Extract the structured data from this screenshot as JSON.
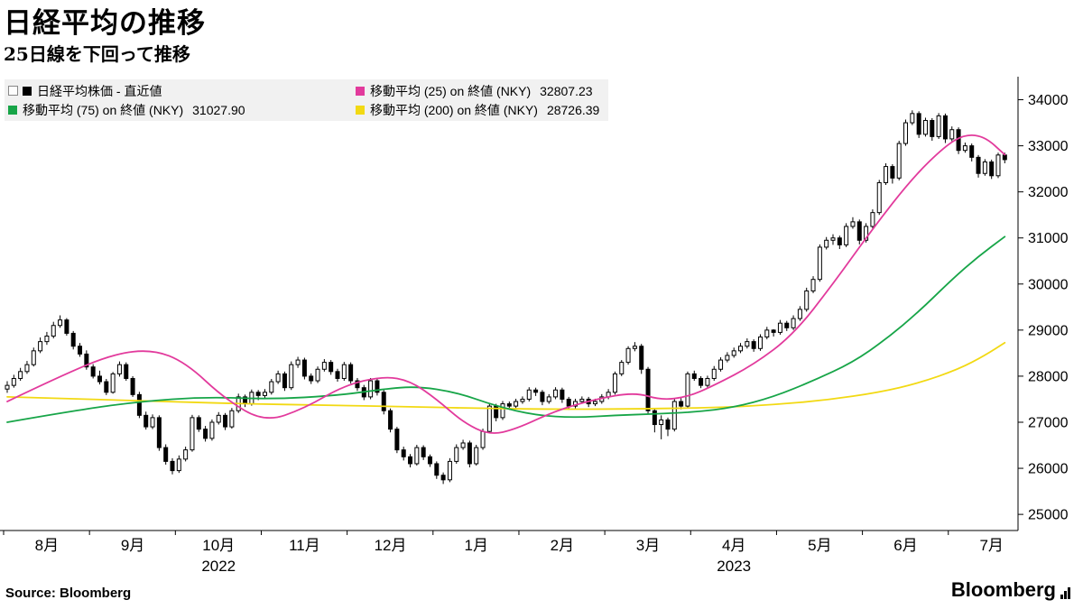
{
  "header": {
    "title": "日経平均の推移",
    "subtitle": "25日線を下回って推移"
  },
  "legend": {
    "items": [
      {
        "label": "日経平均株価 - 直近値",
        "value": ""
      },
      {
        "label": "移動平均 (25)  on 終値 (NKY)",
        "value": "32807.23"
      },
      {
        "label": "移動平均 (75)  on 終値 (NKY)",
        "value": "31027.90"
      },
      {
        "label": "移動平均 (200)  on 終値 (NKY)",
        "value": "28726.39"
      }
    ]
  },
  "footer": {
    "source": "Source: Bloomberg",
    "logo": "Bloomberg"
  },
  "chart_data": {
    "type": "candlestick",
    "title": "日経平均の推移",
    "subtitle": "25日線を下回って推移",
    "ylim": [
      24650,
      34500
    ],
    "y_ticks": [
      25000,
      26000,
      27000,
      28000,
      29000,
      30000,
      31000,
      32000,
      33000,
      34000
    ],
    "months": [
      {
        "label": "8月",
        "start": 0
      },
      {
        "label": "9月",
        "start": 13
      },
      {
        "label": "10月",
        "start": 26
      },
      {
        "label": "11月",
        "start": 39
      },
      {
        "label": "12月",
        "start": 52
      },
      {
        "label": "1月",
        "start": 65
      },
      {
        "label": "2月",
        "start": 78
      },
      {
        "label": "3月",
        "start": 91
      },
      {
        "label": "4月",
        "start": 104
      },
      {
        "label": "5月",
        "start": 117
      },
      {
        "label": "6月",
        "start": 130
      },
      {
        "label": "7月",
        "start": 143
      }
    ],
    "years": [
      {
        "label": "2022",
        "month_index": 2
      },
      {
        "label": "2023",
        "month_index": 8
      }
    ],
    "candles": [
      [
        27720,
        27890,
        27640,
        27800
      ],
      [
        27800,
        28030,
        27750,
        27950
      ],
      [
        27950,
        28180,
        27900,
        28100
      ],
      [
        28100,
        28330,
        28050,
        28250
      ],
      [
        28250,
        28620,
        28210,
        28550
      ],
      [
        28550,
        28840,
        28500,
        28750
      ],
      [
        28750,
        28960,
        28680,
        28870
      ],
      [
        28870,
        29180,
        28820,
        29100
      ],
      [
        29100,
        29320,
        29050,
        29220
      ],
      [
        29220,
        29260,
        28880,
        28930
      ],
      [
        28930,
        28980,
        28580,
        28650
      ],
      [
        28650,
        28720,
        28420,
        28480
      ],
      [
        28480,
        28560,
        28140,
        28200
      ],
      [
        28200,
        28260,
        27950,
        28000
      ],
      [
        28000,
        28120,
        27820,
        27880
      ],
      [
        27880,
        27940,
        27590,
        27650
      ],
      [
        27650,
        28090,
        27620,
        28050
      ],
      [
        28050,
        28320,
        27990,
        28250
      ],
      [
        28250,
        28300,
        27900,
        27950
      ],
      [
        27950,
        28000,
        27550,
        27600
      ],
      [
        27600,
        27660,
        27090,
        27150
      ],
      [
        27150,
        27230,
        26840,
        26900
      ],
      [
        26900,
        27170,
        26850,
        27100
      ],
      [
        27100,
        27150,
        26380,
        26450
      ],
      [
        26450,
        26520,
        26080,
        26150
      ],
      [
        26150,
        26220,
        25870,
        25950
      ],
      [
        25950,
        26280,
        25900,
        26200
      ],
      [
        26200,
        26470,
        26150,
        26400
      ],
      [
        26400,
        27160,
        26360,
        27100
      ],
      [
        27100,
        27150,
        26790,
        26850
      ],
      [
        26850,
        26920,
        26580,
        26650
      ],
      [
        26650,
        27060,
        26600,
        27000
      ],
      [
        27000,
        27220,
        26950,
        27150
      ],
      [
        27150,
        27200,
        26830,
        26900
      ],
      [
        26900,
        27310,
        26860,
        27250
      ],
      [
        27250,
        27620,
        27200,
        27550
      ],
      [
        27550,
        27600,
        27330,
        27400
      ],
      [
        27400,
        27710,
        27360,
        27650
      ],
      [
        27650,
        27700,
        27480,
        27580
      ],
      [
        27580,
        27720,
        27500,
        27650
      ],
      [
        27650,
        27940,
        27600,
        27880
      ],
      [
        27880,
        28120,
        27830,
        28050
      ],
      [
        28050,
        28100,
        27680,
        27750
      ],
      [
        27750,
        28320,
        27700,
        28250
      ],
      [
        28250,
        28420,
        28180,
        28350
      ],
      [
        28350,
        28400,
        27930,
        28000
      ],
      [
        28000,
        28060,
        27830,
        27900
      ],
      [
        27900,
        28210,
        27850,
        28150
      ],
      [
        28150,
        28370,
        28100,
        28300
      ],
      [
        28300,
        28350,
        28030,
        28100
      ],
      [
        28100,
        28160,
        27880,
        27950
      ],
      [
        27950,
        28310,
        27900,
        28250
      ],
      [
        28250,
        28300,
        27840,
        27900
      ],
      [
        27900,
        27960,
        27680,
        27750
      ],
      [
        27750,
        27810,
        27480,
        27550
      ],
      [
        27550,
        27960,
        27500,
        27900
      ],
      [
        27900,
        27950,
        27580,
        27650
      ],
      [
        27650,
        27700,
        27170,
        27250
      ],
      [
        27250,
        27300,
        26780,
        26850
      ],
      [
        26850,
        26900,
        26330,
        26400
      ],
      [
        26400,
        26470,
        26170,
        26250
      ],
      [
        26250,
        26310,
        26020,
        26100
      ],
      [
        26100,
        26510,
        26060,
        26450
      ],
      [
        26450,
        26500,
        26180,
        26250
      ],
      [
        26250,
        26300,
        26030,
        26100
      ],
      [
        26100,
        26150,
        25770,
        25850
      ],
      [
        25850,
        25910,
        25660,
        25750
      ],
      [
        25750,
        26220,
        25700,
        26150
      ],
      [
        26150,
        26520,
        26100,
        26450
      ],
      [
        26450,
        26620,
        26400,
        26550
      ],
      [
        26550,
        26600,
        26020,
        26100
      ],
      [
        26100,
        26510,
        26060,
        26450
      ],
      [
        26450,
        26860,
        26400,
        26800
      ],
      [
        26800,
        27410,
        26760,
        27350
      ],
      [
        27350,
        27400,
        27020,
        27100
      ],
      [
        27100,
        27460,
        27050,
        27400
      ],
      [
        27400,
        27450,
        27270,
        27350
      ],
      [
        27350,
        27510,
        27300,
        27450
      ],
      [
        27450,
        27560,
        27400,
        27500
      ],
      [
        27500,
        27760,
        27450,
        27700
      ],
      [
        27700,
        27750,
        27570,
        27650
      ],
      [
        27650,
        27700,
        27370,
        27450
      ],
      [
        27450,
        27610,
        27400,
        27550
      ],
      [
        27550,
        27760,
        27500,
        27700
      ],
      [
        27700,
        27750,
        27420,
        27500
      ],
      [
        27500,
        27550,
        27270,
        27350
      ],
      [
        27350,
        27510,
        27300,
        27450
      ],
      [
        27450,
        27560,
        27400,
        27500
      ],
      [
        27500,
        27550,
        27330,
        27400
      ],
      [
        27400,
        27510,
        27350,
        27450
      ],
      [
        27450,
        27610,
        27400,
        27550
      ],
      [
        27550,
        27720,
        27500,
        27650
      ],
      [
        27650,
        28100,
        27600,
        28050
      ],
      [
        28050,
        28350,
        28000,
        28300
      ],
      [
        28300,
        28650,
        28250,
        28600
      ],
      [
        28600,
        28740,
        28540,
        28650
      ],
      [
        28650,
        28700,
        28050,
        28150
      ],
      [
        28150,
        28200,
        27180,
        27250
      ],
      [
        27250,
        27300,
        26780,
        26950
      ],
      [
        26950,
        27150,
        26630,
        27050
      ],
      [
        27050,
        27100,
        26700,
        26850
      ],
      [
        26850,
        27500,
        26800,
        27450
      ],
      [
        27450,
        27520,
        27280,
        27350
      ],
      [
        27350,
        28100,
        27300,
        28050
      ],
      [
        28050,
        28120,
        27900,
        27950
      ],
      [
        27950,
        28000,
        27740,
        27800
      ],
      [
        27800,
        28010,
        27750,
        27950
      ],
      [
        27950,
        28220,
        27900,
        28150
      ],
      [
        28150,
        28410,
        28100,
        28350
      ],
      [
        28350,
        28520,
        28300,
        28450
      ],
      [
        28450,
        28620,
        28400,
        28550
      ],
      [
        28550,
        28720,
        28500,
        28650
      ],
      [
        28650,
        28820,
        28600,
        28750
      ],
      [
        28750,
        28800,
        28530,
        28600
      ],
      [
        28600,
        28910,
        28550,
        28850
      ],
      [
        28850,
        29070,
        28800,
        29000
      ],
      [
        29000,
        29020,
        28860,
        28950
      ],
      [
        28950,
        29220,
        28900,
        29150
      ],
      [
        29150,
        29200,
        28980,
        29050
      ],
      [
        29050,
        29320,
        29000,
        29250
      ],
      [
        29250,
        29520,
        29200,
        29450
      ],
      [
        29450,
        29920,
        29400,
        29850
      ],
      [
        29850,
        30170,
        29800,
        30100
      ],
      [
        30100,
        30860,
        30050,
        30800
      ],
      [
        30800,
        31020,
        30750,
        30950
      ],
      [
        30950,
        31080,
        30850,
        31000
      ],
      [
        31000,
        31050,
        30760,
        30850
      ],
      [
        30850,
        31320,
        30800,
        31250
      ],
      [
        31250,
        31450,
        31200,
        31350
      ],
      [
        31350,
        31400,
        30860,
        30950
      ],
      [
        30950,
        31320,
        30900,
        31250
      ],
      [
        31250,
        31620,
        31200,
        31550
      ],
      [
        31550,
        32260,
        31500,
        32200
      ],
      [
        32200,
        32620,
        32150,
        32550
      ],
      [
        32550,
        32600,
        32180,
        32300
      ],
      [
        32300,
        33110,
        32250,
        33050
      ],
      [
        33050,
        33570,
        33000,
        33500
      ],
      [
        33500,
        33770,
        33450,
        33700
      ],
      [
        33700,
        33750,
        33170,
        33250
      ],
      [
        33250,
        33610,
        33200,
        33550
      ],
      [
        33550,
        33600,
        33110,
        33200
      ],
      [
        33200,
        33710,
        33150,
        33650
      ],
      [
        33650,
        33700,
        33060,
        33150
      ],
      [
        33150,
        33420,
        33100,
        33350
      ],
      [
        33350,
        33400,
        32820,
        32900
      ],
      [
        32900,
        33070,
        32850,
        33000
      ],
      [
        33000,
        33050,
        32660,
        32750
      ],
      [
        32750,
        32800,
        32310,
        32400
      ],
      [
        32400,
        32710,
        32350,
        32650
      ],
      [
        32650,
        32700,
        32280,
        32350
      ],
      [
        32350,
        32850,
        32300,
        32800
      ],
      [
        32800,
        32850,
        32620,
        32700
      ]
    ],
    "series": [
      {
        "name": "日経平均株価 - 直近値",
        "kind": "candlestick",
        "color": "#000000"
      },
      {
        "name": "移動平均 (25) on 終値 (NKY)",
        "kind": "line",
        "last": 32807.23,
        "color": "#e23a9c",
        "points": [
          [
            0,
            27450
          ],
          [
            8,
            28000
          ],
          [
            16,
            28480
          ],
          [
            22,
            28580
          ],
          [
            27,
            28300
          ],
          [
            33,
            27500
          ],
          [
            39,
            27000
          ],
          [
            45,
            27300
          ],
          [
            51,
            27800
          ],
          [
            57,
            28000
          ],
          [
            61,
            27900
          ],
          [
            65,
            27500
          ],
          [
            69,
            27000
          ],
          [
            73,
            26720
          ],
          [
            77,
            26850
          ],
          [
            83,
            27250
          ],
          [
            89,
            27500
          ],
          [
            95,
            27650
          ],
          [
            99,
            27480
          ],
          [
            103,
            27550
          ],
          [
            107,
            27800
          ],
          [
            113,
            28250
          ],
          [
            119,
            28900
          ],
          [
            125,
            30000
          ],
          [
            131,
            31200
          ],
          [
            137,
            32300
          ],
          [
            142,
            33000
          ],
          [
            145,
            33250
          ],
          [
            148,
            33200
          ],
          [
            151,
            32807
          ]
        ]
      },
      {
        "name": "移動平均 (75) on 終値 (NKY)",
        "kind": "line",
        "last": 31027.9,
        "color": "#17a548",
        "points": [
          [
            0,
            27000
          ],
          [
            10,
            27250
          ],
          [
            20,
            27450
          ],
          [
            30,
            27550
          ],
          [
            40,
            27500
          ],
          [
            50,
            27580
          ],
          [
            57,
            27720
          ],
          [
            62,
            27780
          ],
          [
            68,
            27650
          ],
          [
            74,
            27350
          ],
          [
            80,
            27150
          ],
          [
            86,
            27100
          ],
          [
            92,
            27150
          ],
          [
            98,
            27180
          ],
          [
            104,
            27220
          ],
          [
            110,
            27320
          ],
          [
            116,
            27550
          ],
          [
            122,
            27900
          ],
          [
            128,
            28300
          ],
          [
            133,
            28800
          ],
          [
            138,
            29400
          ],
          [
            143,
            30100
          ],
          [
            147,
            30600
          ],
          [
            151,
            31028
          ]
        ]
      },
      {
        "name": "移動平均 (200) on 終値 (NKY)",
        "kind": "line",
        "last": 28726.39,
        "color": "#f2d913",
        "points": [
          [
            0,
            27550
          ],
          [
            12,
            27500
          ],
          [
            24,
            27450
          ],
          [
            36,
            27400
          ],
          [
            48,
            27370
          ],
          [
            60,
            27340
          ],
          [
            72,
            27300
          ],
          [
            84,
            27280
          ],
          [
            96,
            27290
          ],
          [
            108,
            27320
          ],
          [
            116,
            27380
          ],
          [
            124,
            27480
          ],
          [
            132,
            27650
          ],
          [
            138,
            27850
          ],
          [
            144,
            28150
          ],
          [
            148,
            28450
          ],
          [
            151,
            28726
          ]
        ]
      }
    ]
  }
}
